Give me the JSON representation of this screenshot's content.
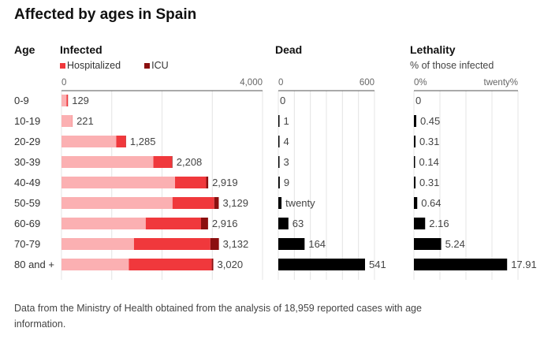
{
  "title": "Affected by ages in Spain",
  "headers": {
    "age": "Age",
    "infected": "Infected",
    "dead": "Dead",
    "lethality": "Lethality",
    "lethality_sub": "% of those infected"
  },
  "legend": [
    {
      "label": "Hospitalized",
      "color": "#f0383c"
    },
    {
      "label": "ICU",
      "color": "#8b0f0f"
    }
  ],
  "colors": {
    "infected": "#fbb0b2",
    "hospitalized": "#f0383c",
    "icu": "#8b0f0f",
    "dead": "#000000",
    "lethality": "#000000"
  },
  "note": "Data from the Ministry of Health obtained from the analysis of 18,959 reported cases with age information.",
  "chart_data": [
    {
      "type": "bar",
      "title": "Infected",
      "stacked": true,
      "categories": [
        "0-9",
        "10-19",
        "20-29",
        "30-39",
        "40-49",
        "50-59",
        "60-69",
        "70-79",
        "80 and +"
      ],
      "series": [
        {
          "name": "Infected (total)",
          "values": [
            129,
            221,
            1285,
            2208,
            2919,
            3129,
            2916,
            3132,
            3020
          ]
        },
        {
          "name": "Hospitalized",
          "values": [
            25,
            5,
            190,
            370,
            620,
            830,
            1100,
            1520,
            1650
          ]
        },
        {
          "name": "ICU",
          "values": [
            3,
            0,
            5,
            10,
            40,
            90,
            140,
            170,
            30
          ]
        }
      ],
      "labels": [
        "129",
        "221",
        "1,285",
        "2,208",
        "2,919",
        "3,129",
        "2,916",
        "3,132",
        "3,020"
      ],
      "xlim": [
        0,
        4000
      ],
      "tick_labels": [
        "0",
        "4,000"
      ],
      "legend": [
        "Hospitalized",
        "ICU"
      ],
      "legend_position": "top-left"
    },
    {
      "type": "bar",
      "title": "Dead",
      "categories": [
        "0-9",
        "10-19",
        "20-29",
        "30-39",
        "40-49",
        "50-59",
        "60-69",
        "70-79",
        "80 and +"
      ],
      "values": [
        0,
        1,
        4,
        3,
        9,
        20,
        63,
        164,
        541
      ],
      "labels": [
        "0",
        "1",
        "4",
        "3",
        "9",
        "twenty",
        "63",
        "164",
        "541"
      ],
      "xlim": [
        0,
        600
      ],
      "tick_labels": [
        "0",
        "600"
      ]
    },
    {
      "type": "bar",
      "title": "Lethality",
      "subtitle": "% of those infected",
      "categories": [
        "0-9",
        "10-19",
        "20-29",
        "30-39",
        "40-49",
        "50-59",
        "60-69",
        "70-79",
        "80 and +"
      ],
      "values": [
        0,
        0.45,
        0.31,
        0.14,
        0.31,
        0.64,
        2.16,
        5.24,
        17.91
      ],
      "labels": [
        "0",
        "0.45",
        "0.31",
        "0.14",
        "0.31",
        "0.64",
        "2.16",
        "5.24",
        "17.91"
      ],
      "xlim": [
        0,
        20
      ],
      "tick_labels": [
        "0%",
        "twenty%"
      ]
    }
  ]
}
